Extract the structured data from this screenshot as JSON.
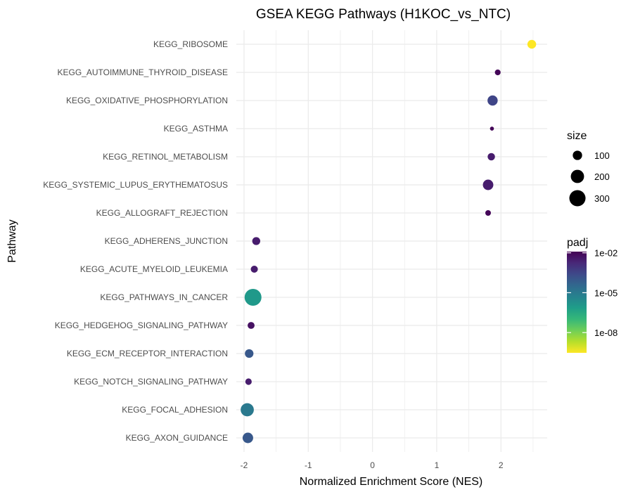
{
  "chart_data": {
    "type": "scatter",
    "title": "GSEA KEGG Pathways (H1KOC_vs_NTC)",
    "xlabel": "Normalized Enrichment Score (NES)",
    "ylabel": "Pathway",
    "xlim": [
      -2.12,
      2.72
    ],
    "x_ticks": [
      -2,
      -1,
      0,
      1,
      2
    ],
    "grid": true,
    "points": [
      {
        "pathway": "KEGG_RIBOSOME",
        "nes": 2.48,
        "size": 88,
        "padj": 1e-10
      },
      {
        "pathway": "KEGG_AUTOIMMUNE_THYROID_DISEASE",
        "nes": 1.95,
        "size": 38,
        "padj": 0.01
      },
      {
        "pathway": "KEGG_OXIDATIVE_PHOSPHORYLATION",
        "nes": 1.87,
        "size": 118,
        "padj": 0.000316
      },
      {
        "pathway": "KEGG_ASTHMA",
        "nes": 1.86,
        "size": 18,
        "padj": 0.01
      },
      {
        "pathway": "KEGG_RETINOL_METABOLISM",
        "nes": 1.85,
        "size": 62,
        "padj": 0.00316
      },
      {
        "pathway": "KEGG_SYSTEMIC_LUPUS_ERYTHEMATOSUS",
        "nes": 1.8,
        "size": 125,
        "padj": 0.00316
      },
      {
        "pathway": "KEGG_ALLOGRAFT_REJECTION",
        "nes": 1.8,
        "size": 36,
        "padj": 0.01
      },
      {
        "pathway": "KEGG_ADHERENS_JUNCTION",
        "nes": -1.81,
        "size": 73,
        "padj": 0.00316
      },
      {
        "pathway": "KEGG_ACUTE_MYELOID_LEUKEMIA",
        "nes": -1.84,
        "size": 57,
        "padj": 0.00316
      },
      {
        "pathway": "KEGG_PATHWAYS_IN_CANCER",
        "nes": -1.86,
        "size": 325,
        "padj": 1e-06
      },
      {
        "pathway": "KEGG_HEDGEHOG_SIGNALING_PATHWAY",
        "nes": -1.89,
        "size": 55,
        "padj": 0.00562
      },
      {
        "pathway": "KEGG_ECM_RECEPTOR_INTERACTION",
        "nes": -1.92,
        "size": 84,
        "padj": 0.0001
      },
      {
        "pathway": "KEGG_NOTCH_SIGNALING_PATHWAY",
        "nes": -1.93,
        "size": 47,
        "padj": 0.00316
      },
      {
        "pathway": "KEGG_FOCAL_ADHESION",
        "nes": -1.95,
        "size": 198,
        "padj": 1e-05
      },
      {
        "pathway": "KEGG_AXON_GUIDANCE",
        "nes": -1.94,
        "size": 127,
        "padj": 0.0001
      }
    ],
    "size_legend": {
      "title": "size",
      "entries": [
        {
          "label": "100",
          "value": 100
        },
        {
          "label": "200",
          "value": 200
        },
        {
          "label": "300",
          "value": 300
        }
      ]
    },
    "color_legend": {
      "title": "padj",
      "scale": "viridis-reversed-log10",
      "range": [
        3e-10,
        0.0123
      ],
      "ticks": [
        {
          "label": "1e-02",
          "value": 0.01
        },
        {
          "label": "1e-05",
          "value": 1e-05
        },
        {
          "label": "1e-08",
          "value": 1e-08
        }
      ]
    },
    "colors": {
      "viridis": [
        "#440154",
        "#482878",
        "#3e4989",
        "#31688e",
        "#26828e",
        "#1f9e89",
        "#35b779",
        "#6ece58",
        "#b5de2b",
        "#fde725"
      ],
      "grid": "#ebebeb",
      "tick_text": "#4d4d4d"
    }
  }
}
